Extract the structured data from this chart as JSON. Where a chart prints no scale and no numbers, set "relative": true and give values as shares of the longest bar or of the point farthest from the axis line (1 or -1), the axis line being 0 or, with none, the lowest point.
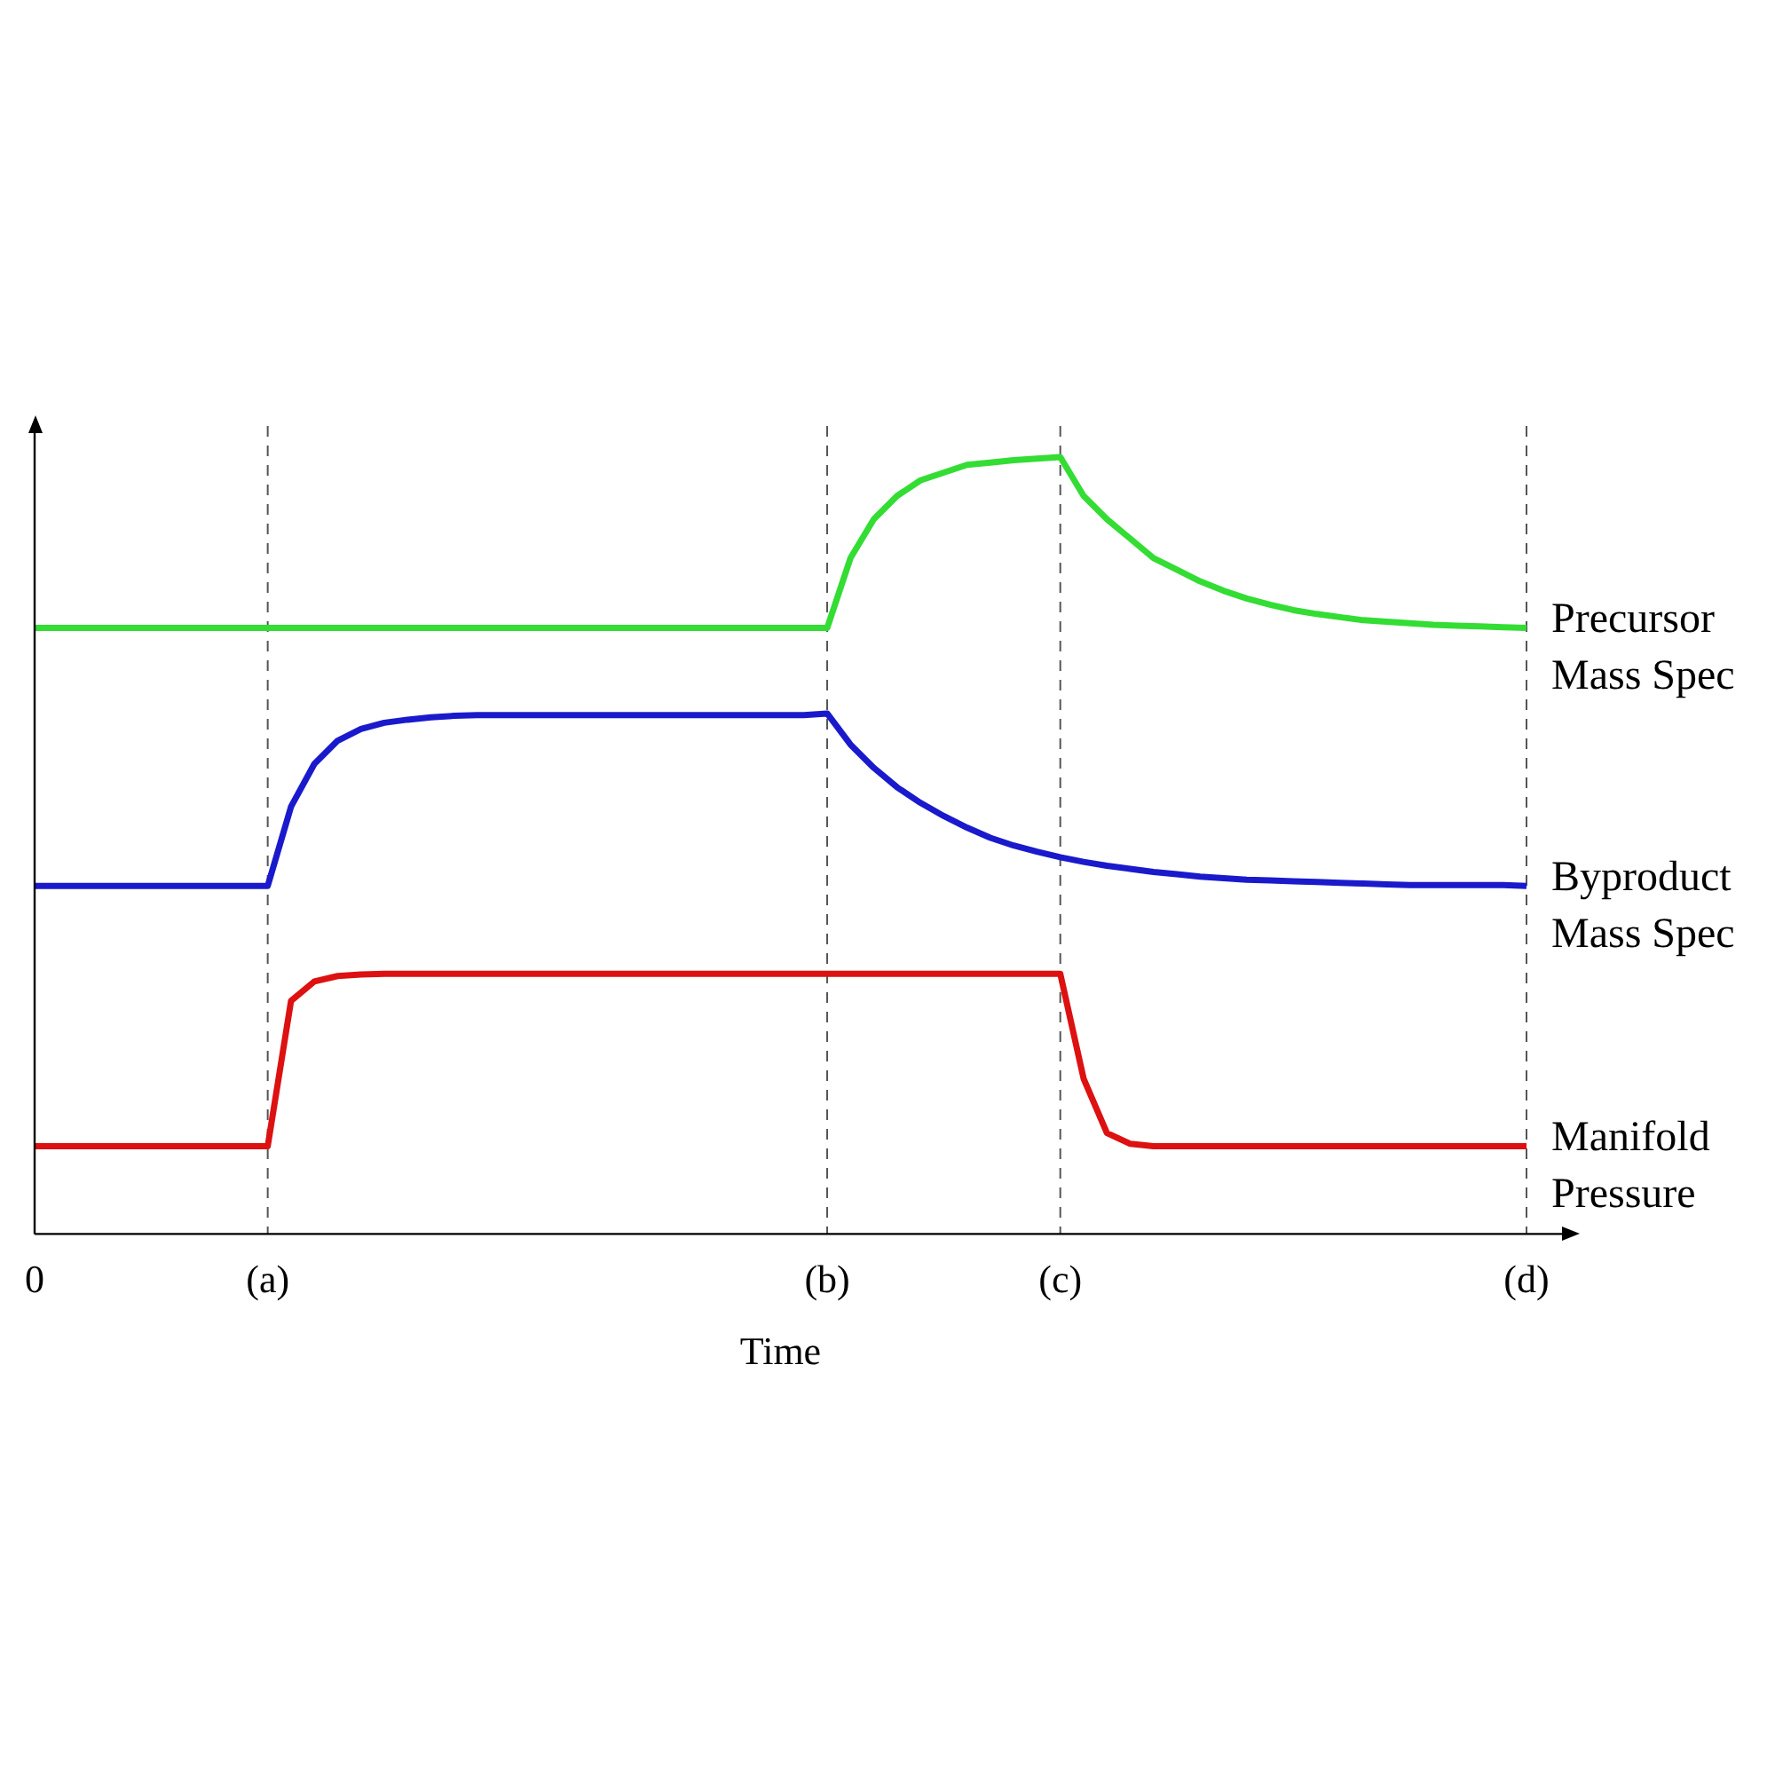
{
  "chart_data": {
    "type": "line",
    "relative": true,
    "xlabel": "Time",
    "grid": "x",
    "categories": [
      "0",
      null,
      null,
      null,
      null,
      null,
      null,
      null,
      null,
      null,
      "(a)",
      null,
      null,
      null,
      null,
      null,
      null,
      null,
      null,
      null,
      null,
      null,
      null,
      null,
      null,
      null,
      null,
      null,
      null,
      null,
      null,
      null,
      null,
      null,
      "(b)",
      null,
      null,
      null,
      null,
      null,
      null,
      null,
      null,
      null,
      "(c)",
      null,
      null,
      null,
      null,
      null,
      null,
      null,
      null,
      null,
      null,
      null,
      null,
      null,
      null,
      null,
      null,
      null,
      null,
      null,
      "(d)"
    ],
    "series": [
      {
        "name": "Precursor Mass Spec",
        "color": "#33dd33",
        "values": [
          0.78,
          0.78,
          0.78,
          0.78,
          0.78,
          0.78,
          0.78,
          0.78,
          0.78,
          0.78,
          0.78,
          0.78,
          0.78,
          0.78,
          0.78,
          0.78,
          0.78,
          0.78,
          0.78,
          0.78,
          0.78,
          0.78,
          0.78,
          0.78,
          0.78,
          0.78,
          0.78,
          0.78,
          0.78,
          0.78,
          0.78,
          0.78,
          0.78,
          0.78,
          0.78,
          0.87,
          0.92,
          0.95,
          0.97,
          0.98,
          0.99,
          0.993,
          0.996,
          0.998,
          1.0,
          0.95,
          0.92,
          0.895,
          0.87,
          0.855,
          0.84,
          0.828,
          0.818,
          0.81,
          0.803,
          0.798,
          0.794,
          0.79,
          0.788,
          0.786,
          0.784,
          0.783,
          0.782,
          0.781,
          0.78
        ]
      },
      {
        "name": "Byproduct Mass Spec",
        "color": "#1a1acc",
        "values": [
          0.448,
          0.448,
          0.448,
          0.448,
          0.448,
          0.448,
          0.448,
          0.448,
          0.448,
          0.448,
          0.448,
          0.55,
          0.605,
          0.635,
          0.65,
          0.658,
          0.662,
          0.665,
          0.667,
          0.668,
          0.668,
          0.668,
          0.668,
          0.668,
          0.668,
          0.668,
          0.668,
          0.668,
          0.668,
          0.668,
          0.668,
          0.668,
          0.668,
          0.668,
          0.67,
          0.63,
          0.6,
          0.575,
          0.555,
          0.538,
          0.523,
          0.51,
          0.5,
          0.492,
          0.485,
          0.479,
          0.474,
          0.47,
          0.466,
          0.463,
          0.46,
          0.458,
          0.456,
          0.455,
          0.454,
          0.453,
          0.452,
          0.451,
          0.45,
          0.449,
          0.449,
          0.449,
          0.449,
          0.449,
          0.448
        ]
      },
      {
        "name": "Manifold Pressure",
        "color": "#dd1111",
        "values": [
          0.113,
          0.113,
          0.113,
          0.113,
          0.113,
          0.113,
          0.113,
          0.113,
          0.113,
          0.113,
          0.113,
          0.3,
          0.325,
          0.332,
          0.334,
          0.335,
          0.335,
          0.335,
          0.335,
          0.335,
          0.335,
          0.335,
          0.335,
          0.335,
          0.335,
          0.335,
          0.335,
          0.335,
          0.335,
          0.335,
          0.335,
          0.335,
          0.335,
          0.335,
          0.335,
          0.335,
          0.335,
          0.335,
          0.335,
          0.335,
          0.335,
          0.335,
          0.335,
          0.335,
          0.335,
          0.2,
          0.13,
          0.116,
          0.113,
          0.113,
          0.113,
          0.113,
          0.113,
          0.113,
          0.113,
          0.113,
          0.113,
          0.113,
          0.113,
          0.113,
          0.113,
          0.113,
          0.113,
          0.113,
          0.113
        ]
      }
    ]
  }
}
